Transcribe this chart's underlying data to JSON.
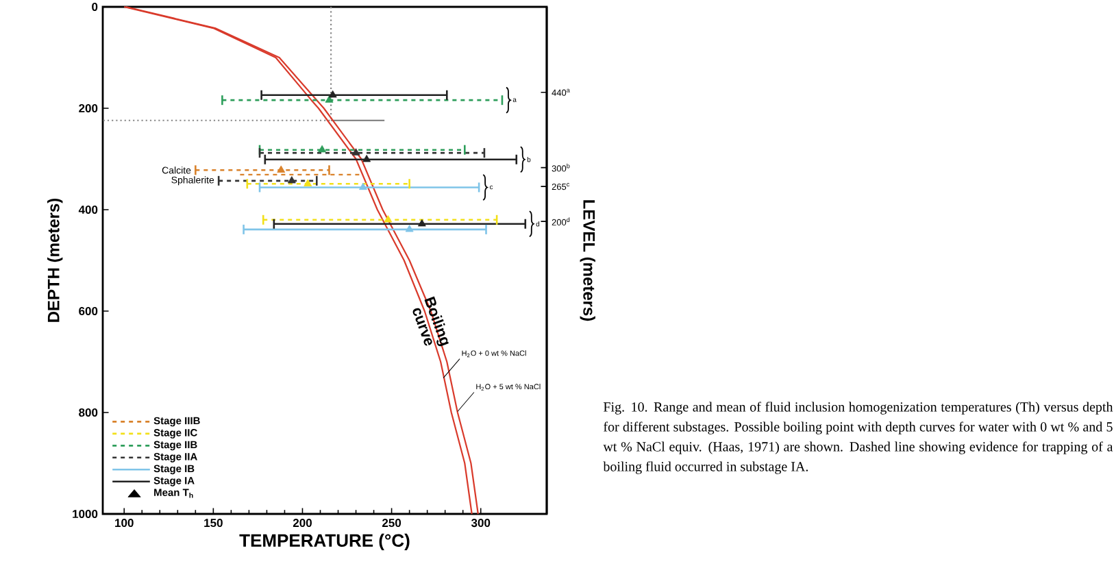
{
  "chart_data": {
    "type": "scatter",
    "xlabel": "TEMPERATURE (°C)",
    "ylabel": "DEPTH (meters)",
    "y2label": "LEVEL  (meters)",
    "xlim": [
      88,
      337
    ],
    "xticks": [
      100,
      150,
      200,
      250,
      300
    ],
    "ylim": [
      1000,
      0
    ],
    "yticks": [
      0,
      200,
      400,
      600,
      800,
      1000
    ],
    "y2lim": [
      -344,
      599
    ],
    "y2ticks": [
      {
        "value": 440,
        "label": "440$^{a}$"
      },
      {
        "value": 300,
        "label": "300$^{b}$"
      },
      {
        "value": 265,
        "label": "265$^{c}$"
      },
      {
        "value": 200,
        "label": "200$^{d}$"
      }
    ],
    "legend": "bottom left",
    "marker": "triangle",
    "series": [
      {
        "name": "Stage IIIB",
        "color": "#d9822b",
        "line_style": "dashed",
        "x": [
          188
        ],
        "values": [
          322
        ],
        "xerrors": [
          [
            140,
            215
          ]
        ]
      },
      {
        "type": "line",
        "color": "#d9822b",
        "marker": "none",
        "line_style": "dashed",
        "x": [
          165,
          233
        ],
        "values": [
          331,
          331
        ]
      },
      {
        "name": "Stage IIC",
        "color": "#f2e01a",
        "line_style": "dashed",
        "x": [
          203,
          248
        ],
        "values": [
          349,
          420
        ],
        "xerrors": [
          [
            169,
            260
          ],
          [
            178,
            309
          ]
        ]
      },
      {
        "name": "Stage IIB",
        "color": "#2e9e5b",
        "line_style": "dashed",
        "x": [
          215,
          211
        ],
        "values": [
          184,
          282
        ],
        "xerrors": [
          [
            155,
            312
          ],
          [
            176,
            291
          ]
        ]
      },
      {
        "name": "Stage IIA",
        "color": "#333333",
        "line_style": "dashed",
        "x": [
          230,
          194
        ],
        "values": [
          288,
          343
        ],
        "xerrors": [
          [
            176,
            302
          ],
          [
            153,
            208
          ]
        ]
      },
      {
        "name": "Stage IB",
        "color": "#7fc4e8",
        "line_style": "solid",
        "x": [
          234,
          260
        ],
        "values": [
          356,
          439
        ],
        "xerrors": [
          [
            176,
            299
          ],
          [
            167,
            303
          ]
        ]
      },
      {
        "name": "Stage IA",
        "color": "#222222",
        "line_style": "solid",
        "x": [
          217,
          236,
          267
        ],
        "values": [
          174,
          301,
          428
        ],
        "xerrors": [
          [
            177,
            281
          ],
          [
            179,
            320
          ],
          [
            184,
            325
          ]
        ]
      },
      {
        "type": "line",
        "color": "#777777",
        "marker": "none",
        "line_style": "solid",
        "x": [
          216,
          246
        ],
        "values": [
          224,
          224
        ]
      },
      {
        "type": "line",
        "color": "#888888",
        "marker": "none",
        "line_style": "dotted",
        "x": [
          216,
          216,
          88
        ],
        "values": [
          0,
          224,
          224
        ]
      },
      {
        "type": "line",
        "color": "#d93a2b",
        "marker": "none",
        "line_style": "solid",
        "x": [
          100,
          150,
          185,
          205,
          209,
          230,
          242,
          257,
          268.5,
          277.5,
          283.5,
          291,
          295
        ],
        "values": [
          0,
          42,
          100,
          184,
          200,
          300,
          400,
          500,
          600,
          700,
          800,
          900,
          1000
        ]
      },
      {
        "type": "line",
        "color": "#d93a2b",
        "marker": "none",
        "line_style": "solid",
        "x": [
          101,
          151,
          187,
          208,
          212,
          233,
          245,
          260,
          272,
          281,
          287,
          294.5,
          298.5
        ],
        "values": [
          0,
          42,
          100,
          184,
          200,
          300,
          400,
          500,
          600,
          700,
          800,
          900,
          1000
        ]
      }
    ],
    "annotations": [
      {
        "text": "Calcite",
        "x": 140,
        "y": 322
      },
      {
        "text": "Sphalerite",
        "x": 153,
        "y": 343
      },
      {
        "text": "a",
        "x": 312,
        "y": 184
      },
      {
        "text": "b",
        "x": 320,
        "y": 301
      },
      {
        "text": "c",
        "x": 299,
        "y": 356
      },
      {
        "text": "d",
        "x": 325,
        "y": 428
      },
      {
        "text": "Boiling curve",
        "x": 272,
        "y": 625
      },
      {
        "text": "H$_{2}$O + 0 wt % NaCl",
        "x": 279,
        "y": 732
      },
      {
        "text": "H$_{2}$O + 5 wt % NaCl",
        "x": 287,
        "y": 798
      },
      "Mean T$_{h}$",
      "Fig. 10. Range and mean of fluid inclusion homogenization temperatures (Th) versus depth for different substages. Possible boiling point with depth curves for water with 0 wt % and 5 wt % NaCl equiv. (Haas, 1971) are shown. Dashed line showing evidence for trapping of a boiling fluid occurred in substage IA."
    ]
  }
}
